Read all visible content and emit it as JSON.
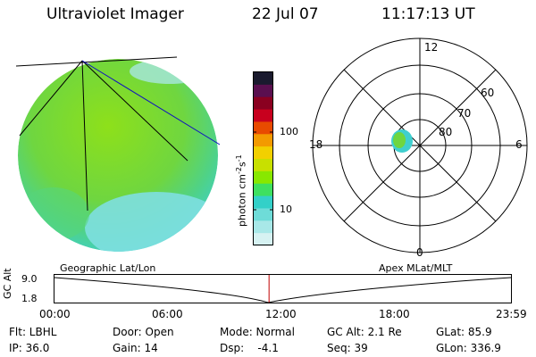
{
  "header": {
    "instrument": "Ultraviolet Imager",
    "date": "22 Jul 07",
    "time": "11:17:13 UT"
  },
  "colorbar": {
    "label": "photon cm-2s-1",
    "ticks": [
      "100",
      "10"
    ],
    "colors": [
      "#1a1a2e",
      "#5a0f4f",
      "#8a0020",
      "#c8001e",
      "#e84a00",
      "#f39a00",
      "#f2d000",
      "#c8e000",
      "#88e800",
      "#3ee060",
      "#33d0c8",
      "#6edcd8",
      "#a8e8e8",
      "#d6f2f2"
    ]
  },
  "polar_plot": {
    "mlt_labels": {
      "top": "12",
      "bottom": "0",
      "left": "18",
      "right": "6"
    },
    "lat_labels": [
      "60",
      "70",
      "80"
    ]
  },
  "orbit_panel": {
    "ylabel": "GC Alt",
    "yticks": [
      "9.0",
      "1.8"
    ],
    "left_title": "Geographic Lat/Lon",
    "right_title": "Apex MLat/MLT",
    "xticks": [
      "00:00",
      "06:00",
      "12:00",
      "18:00",
      "23:59"
    ],
    "current_time_fraction": 0.47
  },
  "info": {
    "flt": "Flt: LBHL",
    "door": "Door: Open",
    "mode": "Mode: Normal",
    "gc_alt": "GC Alt: 2.1 Re",
    "glat": "GLat:  85.9",
    "ip": "IP: 36.0",
    "gain": "Gain: 14",
    "dsp": "Dsp:    -4.1",
    "seq": "Seq: 39",
    "glon": "GLon: 336.9"
  }
}
